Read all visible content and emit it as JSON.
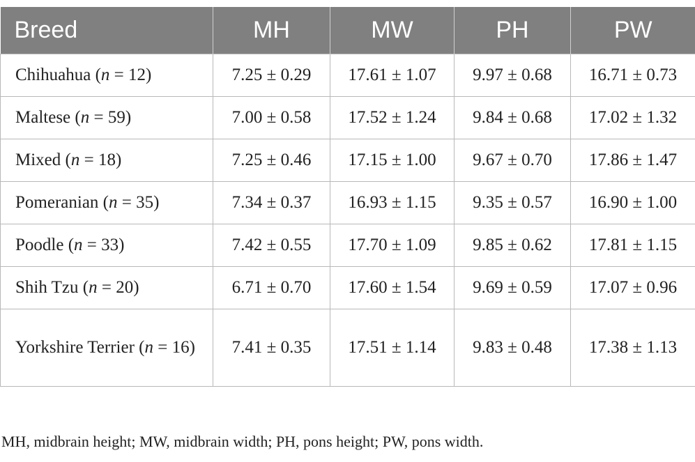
{
  "table": {
    "headers": [
      "Breed",
      "MH",
      "MW",
      "PH",
      "PW"
    ],
    "rows": [
      {
        "breed": "Chihuahua (",
        "n": "n",
        "count": " = 12)",
        "values": [
          "7.25 ± 0.29",
          "17.61 ± 1.07",
          "9.97 ± 0.68",
          "16.71 ± 0.73"
        ]
      },
      {
        "breed": "Maltese (",
        "n": "n",
        "count": " = 59)",
        "values": [
          "7.00 ± 0.58",
          "17.52 ± 1.24",
          "9.84 ± 0.68",
          "17.02 ± 1.32"
        ]
      },
      {
        "breed": "Mixed (",
        "n": "n",
        "count": " = 18)",
        "values": [
          "7.25 ± 0.46",
          "17.15 ± 1.00",
          "9.67 ± 0.70",
          "17.86 ± 1.47"
        ]
      },
      {
        "breed": "Pomeranian (",
        "n": "n",
        "count": " = 35)",
        "values": [
          "7.34 ± 0.37",
          "16.93 ± 1.15",
          "9.35 ± 0.57",
          "16.90 ± 1.00"
        ]
      },
      {
        "breed": "Poodle (",
        "n": "n",
        "count": " = 33)",
        "values": [
          "7.42 ± 0.55",
          "17.70 ± 1.09",
          "9.85 ± 0.62",
          "17.81 ± 1.15"
        ]
      },
      {
        "breed": "Shih Tzu (",
        "n": "n",
        "count": " = 20)",
        "values": [
          "6.71 ± 0.70",
          "17.60 ± 1.54",
          "9.69 ± 0.59",
          "17.07 ± 0.96"
        ]
      },
      {
        "breed": "Yorkshire Terrier (",
        "n": "n",
        "count": " = 16)",
        "values": [
          "7.41 ± 0.35",
          "17.51 ± 1.14",
          "9.83 ± 0.48",
          "17.38 ± 1.13"
        ]
      }
    ]
  },
  "footnote": "MH, midbrain height; MW, midbrain width; PH, pons height; PW, pons width.",
  "colors": {
    "header_bg": "#808080",
    "header_text": "#ffffff",
    "grid": "#b8b8b8",
    "text": "#222222"
  }
}
